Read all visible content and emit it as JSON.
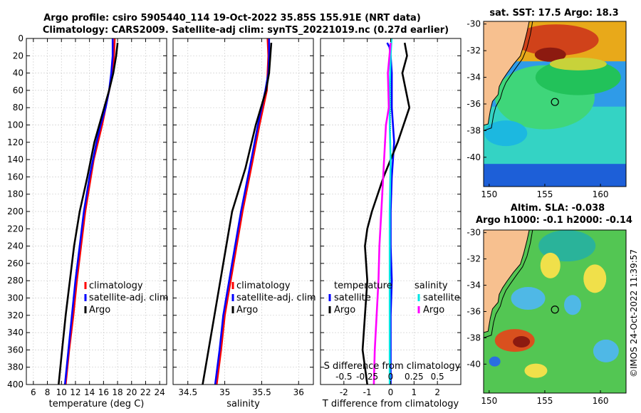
{
  "header": {
    "title_line1": "Argo profile: csiro 5905440_114 19-Oct-2022 35.85S 155.91E (NRT data)",
    "title_line2": "Climatology: CARS2009. Satellite-adj clim: synTS_20221019.nc (0.27d earlier)"
  },
  "colors": {
    "climatology": "#ff0000",
    "satellite": "#0000ff",
    "argo": "#000000",
    "satellite_s": "#00e5e5",
    "argo_s": "#ff00ff"
  },
  "watermark": "©IMOS 24-Oct-2022 11:39:57",
  "chart_data": [
    {
      "type": "line",
      "id": "temperature",
      "xlabel": "temperature (deg C)",
      "ylabel": "",
      "xlim": [
        5,
        25
      ],
      "ylim": [
        400,
        0
      ],
      "xticks": [
        6,
        8,
        10,
        12,
        14,
        16,
        18,
        20,
        22,
        24
      ],
      "yticks": [
        0,
        20,
        40,
        60,
        80,
        100,
        120,
        140,
        160,
        180,
        200,
        220,
        240,
        260,
        280,
        300,
        320,
        340,
        360,
        380,
        400
      ],
      "legend": [
        "climatology",
        "satellite-adj. clim",
        "Argo"
      ],
      "series": [
        {
          "name": "climatology",
          "color": "#ff0000",
          "depth": [
            0,
            20,
            40,
            60,
            80,
            100,
            120,
            140,
            160,
            200,
            240,
            280,
            320,
            360,
            400
          ],
          "values": [
            17.6,
            17.5,
            17.3,
            16.8,
            16.3,
            15.8,
            15.2,
            14.6,
            14.2,
            13.4,
            12.8,
            12.2,
            11.7,
            11.1,
            10.6
          ]
        },
        {
          "name": "satellite-adj. clim",
          "color": "#0000ff",
          "depth": [
            0,
            20,
            40,
            60,
            80,
            100,
            120,
            140,
            160,
            200,
            240,
            280,
            320,
            360,
            400
          ],
          "values": [
            17.3,
            17.3,
            17.1,
            16.8,
            16.3,
            15.6,
            15.0,
            14.5,
            14.0,
            13.2,
            12.6,
            12.0,
            11.5,
            11.0,
            10.5
          ]
        },
        {
          "name": "Argo",
          "color": "#000000",
          "depth": [
            5,
            20,
            40,
            60,
            80,
            100,
            120,
            140,
            160,
            200,
            240,
            280,
            320,
            360,
            400
          ],
          "values": [
            18.0,
            17.8,
            17.4,
            16.8,
            16.1,
            15.4,
            14.7,
            14.2,
            13.7,
            12.6,
            11.8,
            11.2,
            10.6,
            10.1,
            9.6
          ]
        }
      ]
    },
    {
      "type": "line",
      "id": "salinity",
      "xlabel": "salinity",
      "xlim": [
        34.3,
        36.2
      ],
      "ylim": [
        400,
        0
      ],
      "xticks": [
        34.5,
        35,
        35.5,
        36
      ],
      "xticklabels": [
        "34.5",
        "35",
        "35.5",
        "36"
      ],
      "legend": [
        "climatology",
        "satellite-adj. clim",
        "Argo"
      ],
      "series": [
        {
          "name": "climatology",
          "color": "#ff0000",
          "depth": [
            0,
            20,
            40,
            60,
            80,
            100,
            140,
            200,
            260,
            320,
            360,
            400
          ],
          "values": [
            35.58,
            35.59,
            35.58,
            35.57,
            35.52,
            35.47,
            35.38,
            35.24,
            35.12,
            35.0,
            34.95,
            34.89
          ]
        },
        {
          "name": "satellite-adj. clim",
          "color": "#0000ff",
          "depth": [
            0,
            20,
            40,
            60,
            80,
            100,
            140,
            200,
            260,
            320,
            360,
            400
          ],
          "values": [
            35.6,
            35.6,
            35.59,
            35.55,
            35.5,
            35.45,
            35.36,
            35.22,
            35.1,
            34.98,
            34.93,
            34.87
          ]
        },
        {
          "name": "Argo",
          "color": "#000000",
          "depth": [
            5,
            40,
            60,
            100,
            150,
            200,
            260,
            320,
            360,
            400
          ],
          "values": [
            35.63,
            35.6,
            35.56,
            35.42,
            35.28,
            35.1,
            34.98,
            34.86,
            34.78,
            34.7
          ]
        }
      ]
    },
    {
      "type": "line",
      "id": "difference",
      "xlabel": "T difference from climatology",
      "top_label": "S difference from climatology",
      "xlim": [
        -3,
        3
      ],
      "ylim": [
        400,
        0
      ],
      "xticks": [
        -2,
        -1,
        0,
        1,
        2
      ],
      "xticklabels": [
        "-2",
        "-1",
        "0",
        "1",
        "2"
      ],
      "top_xticks": [
        -0.5,
        -0.25,
        0,
        0.25,
        0.5
      ],
      "top_xticklabels": [
        "-0.5",
        "-0.25",
        "0",
        "0.25",
        "0.5"
      ],
      "legend_left": [
        "temperature",
        "satellite",
        "Argo"
      ],
      "legend_right": [
        "salinity",
        "satellite",
        "Argo"
      ],
      "series": [
        {
          "name": "T satellite",
          "color": "#0000ff",
          "depth": [
            5,
            10,
            20,
            40,
            80,
            120,
            160,
            200,
            240,
            280,
            320,
            360,
            400
          ],
          "values": [
            -0.15,
            -0.05,
            0.0,
            0.05,
            0.05,
            0.15,
            0.05,
            0.0,
            0.0,
            0.05,
            0.0,
            0.0,
            0.0
          ]
        },
        {
          "name": "T Argo",
          "color": "#000000",
          "depth": [
            5,
            20,
            40,
            80,
            120,
            160,
            200,
            220,
            240,
            280,
            320,
            360,
            400
          ],
          "values": [
            0.6,
            0.7,
            0.5,
            0.8,
            0.3,
            -0.3,
            -0.8,
            -1.0,
            -1.1,
            -1.0,
            -1.1,
            -1.2,
            -1.0
          ]
        },
        {
          "name": "S satellite",
          "color": "#00e5e5",
          "depth": [
            0,
            20,
            60,
            100,
            140,
            200,
            260,
            320,
            360,
            400
          ],
          "values": [
            0.01,
            0.0,
            -0.01,
            -0.01,
            0.0,
            -0.01,
            -0.01,
            -0.01,
            -0.01,
            -0.01
          ]
        },
        {
          "name": "S Argo",
          "color": "#ff00ff",
          "depth": [
            5,
            40,
            80,
            100,
            120,
            160,
            200,
            240,
            280,
            320,
            360,
            400
          ],
          "values": [
            0.0,
            -0.03,
            -0.02,
            -0.05,
            -0.06,
            -0.08,
            -0.1,
            -0.12,
            -0.13,
            -0.15,
            -0.17,
            -0.18
          ]
        }
      ]
    }
  ],
  "maps": [
    {
      "id": "sst",
      "title": "sat. SST: 17.5 Argo: 18.3",
      "xlim": [
        149.5,
        162.3
      ],
      "ylim": [
        -42.2,
        -29.8
      ],
      "xticks": [
        150,
        155,
        160
      ],
      "yticks": [
        -30,
        -32,
        -34,
        -36,
        -38,
        -40
      ],
      "marker": {
        "lon": 155.91,
        "lat": -35.85
      }
    },
    {
      "id": "sla",
      "title_line1": "Altim. SLA: -0.038",
      "title_line2": "Argo h1000: -0.1 h2000: -0.14",
      "xlim": [
        149.5,
        162.3
      ],
      "ylim": [
        -42.2,
        -29.8
      ],
      "xticks": [
        150,
        155,
        160
      ],
      "yticks": [
        -30,
        -32,
        -34,
        -36,
        -38,
        -40
      ],
      "marker": {
        "lon": 155.91,
        "lat": -35.85
      }
    }
  ]
}
